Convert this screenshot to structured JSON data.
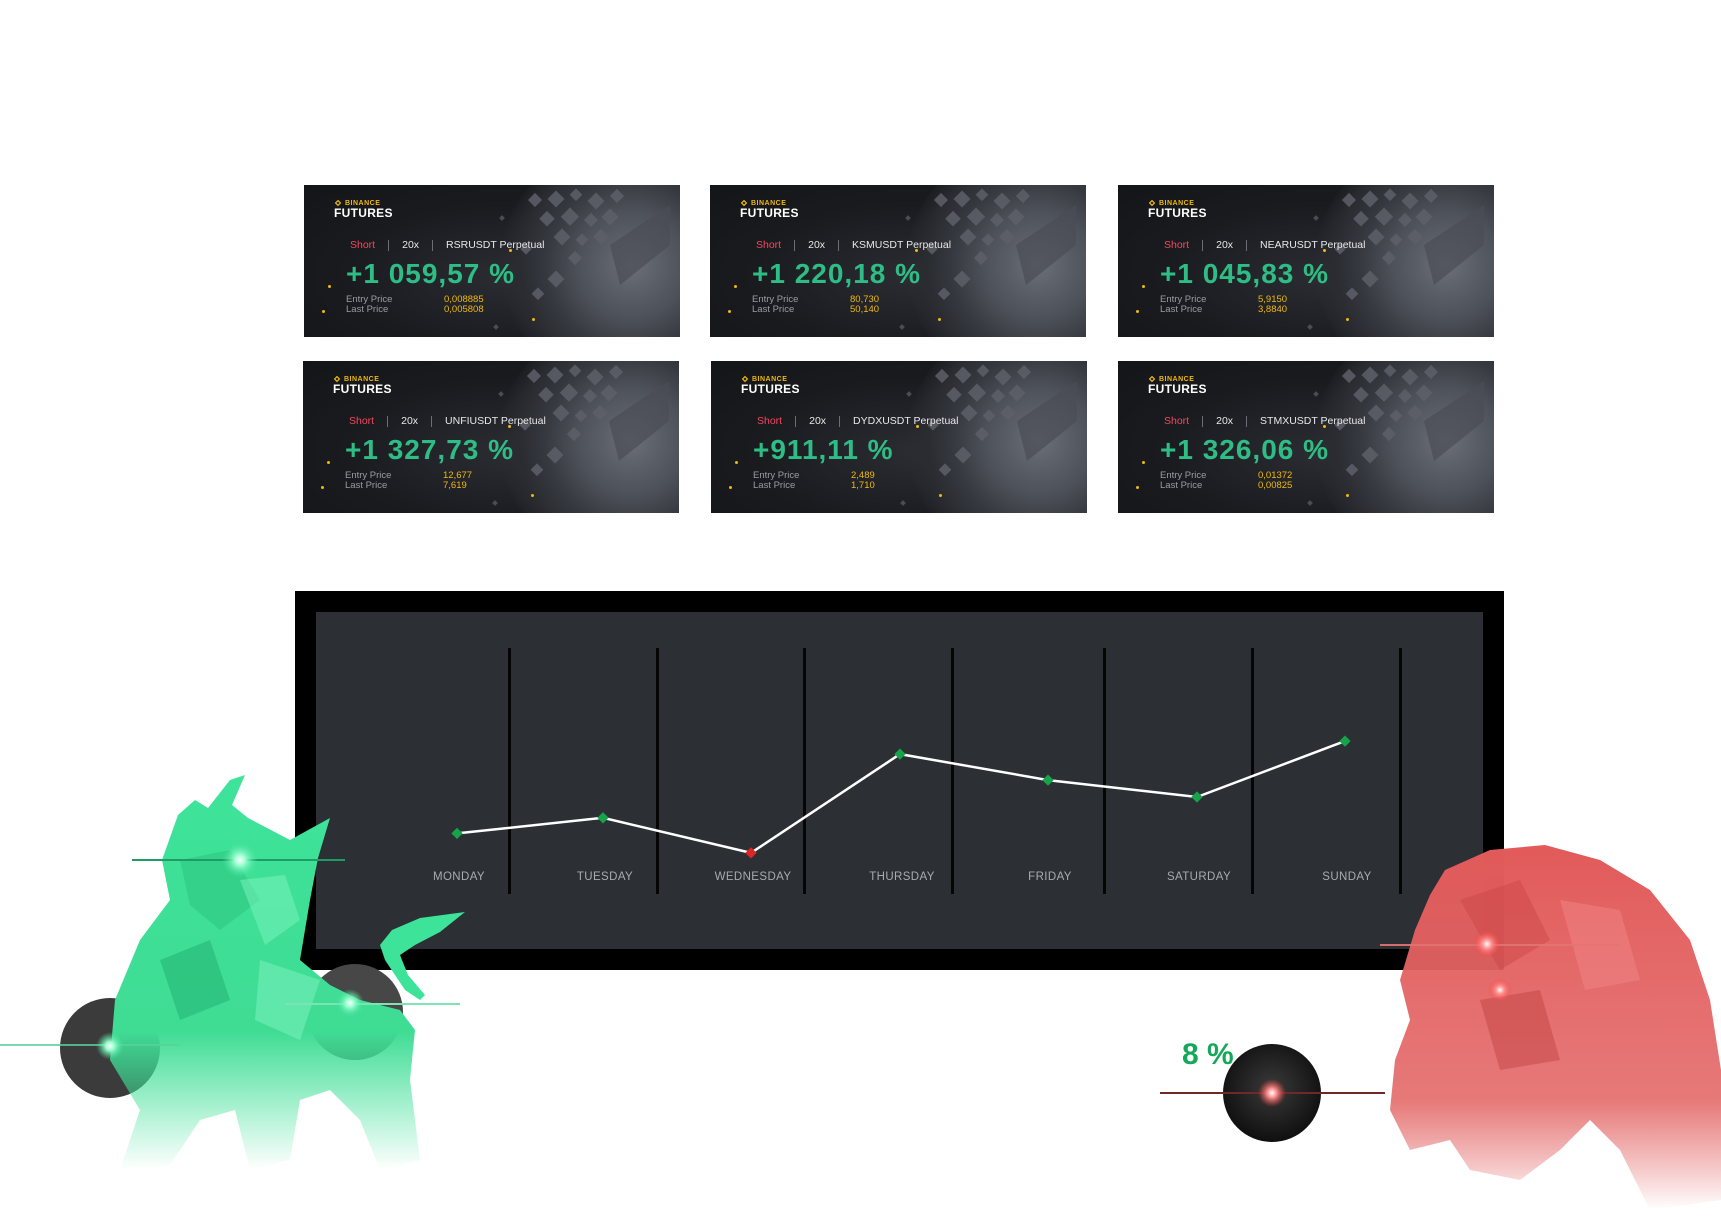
{
  "cards": [
    {
      "brand_top": "BINANCE",
      "brand_bottom": "FUTURES",
      "side": "Short",
      "leverage": "20x",
      "pair": "RSRUSDT Perpetual",
      "pnl": "+1 059,57 %",
      "entry_label": "Entry Price",
      "last_label": "Last Price",
      "entry": "0,008885",
      "last": "0,005808"
    },
    {
      "brand_top": "BINANCE",
      "brand_bottom": "FUTURES",
      "side": "Short",
      "leverage": "20x",
      "pair": "KSMUSDT Perpetual",
      "pnl": "+1 220,18 %",
      "entry_label": "Entry Price",
      "last_label": "Last Price",
      "entry": "80,730",
      "last": "50,140"
    },
    {
      "brand_top": "BINANCE",
      "brand_bottom": "FUTURES",
      "side": "Short",
      "leverage": "20x",
      "pair": "NEARUSDT Perpetual",
      "pnl": "+1 045,83 %",
      "entry_label": "Entry Price",
      "last_label": "Last Price",
      "entry": "5,9150",
      "last": "3,8840"
    },
    {
      "brand_top": "BINANCE",
      "brand_bottom": "FUTURES",
      "side": "Short",
      "leverage": "20x",
      "pair": "UNFIUSDT Perpetual",
      "pnl": "+1 327,73 %",
      "entry_label": "Entry Price",
      "last_label": "Last Price",
      "entry": "12,677",
      "last": "7,619"
    },
    {
      "brand_top": "BINANCE",
      "brand_bottom": "FUTURES",
      "side": "Short",
      "leverage": "20x",
      "pair": "DYDXUSDT Perpetual",
      "pnl": "+911,11 %",
      "entry_label": "Entry Price",
      "last_label": "Last Price",
      "entry": "2,489",
      "last": "1,710"
    },
    {
      "brand_top": "BINANCE",
      "brand_bottom": "FUTURES",
      "side": "Short",
      "leverage": "20x",
      "pair": "STMXUSDT Perpetual",
      "pnl": "+1 326,06 %",
      "entry_label": "Entry Price",
      "last_label": "Last Price",
      "entry": "0,01372",
      "last": "0,00825"
    }
  ],
  "weekly_chart": {
    "days": [
      "MONDAY",
      "TUESDAY",
      "WEDNESDAY",
      "THURSDAY",
      "FRIDAY",
      "SATURDAY",
      "SUNDAY"
    ],
    "points": [
      {
        "value": 2.2,
        "status": "up"
      },
      {
        "value": 3.4,
        "status": "up"
      },
      {
        "value": 0.7,
        "status": "down"
      },
      {
        "value": 8.3,
        "status": "up"
      },
      {
        "value": 6.3,
        "status": "up"
      },
      {
        "value": 5.0,
        "status": "up"
      },
      {
        "value": 9.3,
        "status": "up"
      }
    ],
    "colors": {
      "up": "#16a34a",
      "down": "#dc2626",
      "line": "#ffffff",
      "divider": "#050505"
    }
  },
  "badge": {
    "text": "8 %"
  },
  "colors": {
    "profit": "#2ebd85",
    "short": "#f6465d",
    "binance_yellow": "#f0b90b",
    "bull": "#3ee39a",
    "bear": "#e25a5a"
  }
}
